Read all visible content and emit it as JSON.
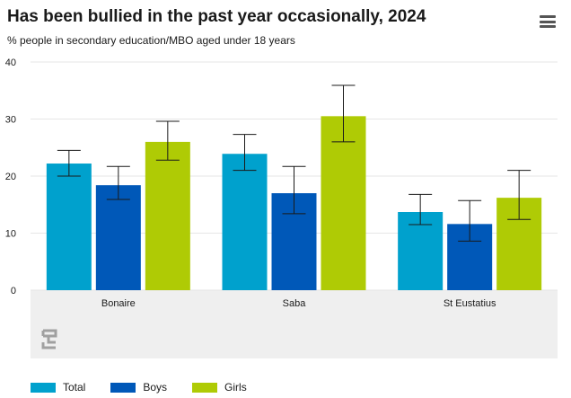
{
  "title": "Has been bullied in the past year occasionally, 2024",
  "subtitle": "% people in secondary education/MBO aged under 18 years",
  "menu_icon": "hamburger-icon",
  "logo_icon": "cbs-logo-icon",
  "colors": {
    "Total": "#00a1cd",
    "Boys": "#0058b8",
    "Girls": "#afcb05",
    "grid": "#e6e6e6",
    "category_band": "#efefef"
  },
  "legend": [
    {
      "label": "Total",
      "color": "#00a1cd"
    },
    {
      "label": "Boys",
      "color": "#0058b8"
    },
    {
      "label": "Girls",
      "color": "#afcb05"
    }
  ],
  "chart_data": {
    "type": "bar",
    "categories": [
      "Bonaire",
      "Saba",
      "St Eustatius"
    ],
    "series": [
      {
        "name": "Total",
        "values": [
          22.2,
          23.9,
          13.7
        ],
        "error_low": [
          20.0,
          21.0,
          11.5
        ],
        "error_high": [
          24.5,
          27.3,
          16.8
        ]
      },
      {
        "name": "Boys",
        "values": [
          18.4,
          17.0,
          11.6
        ],
        "error_low": [
          15.9,
          13.4,
          8.6
        ],
        "error_high": [
          21.7,
          21.7,
          15.7
        ]
      },
      {
        "name": "Girls",
        "values": [
          26.0,
          30.5,
          16.2
        ],
        "error_low": [
          22.8,
          26.0,
          12.4
        ],
        "error_high": [
          29.6,
          35.9,
          21.0
        ]
      }
    ],
    "yticks": [
      0,
      10,
      20,
      30,
      40
    ],
    "ylim": [
      0,
      40
    ],
    "grid": true,
    "legend_position": "bottom-left"
  }
}
